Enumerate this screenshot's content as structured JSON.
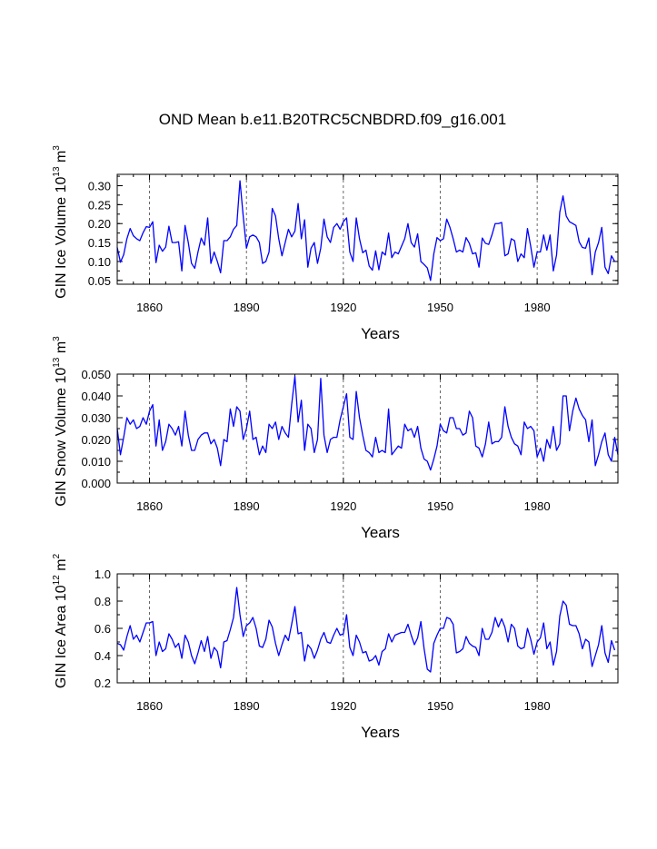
{
  "figure": {
    "title": "OND Mean b.e11.B20TRC5CNBDRD.f09_g16.001"
  },
  "chart_data": [
    {
      "type": "line",
      "title": "OND Mean b.e11.B20TRC5CNBDRD.f09_g16.001",
      "xlabel": "Years",
      "ylabel": {
        "base": "GIN Ice Volume 10",
        "exp1": "13",
        "mid": " m",
        "exp2": "3"
      },
      "xlim": [
        1850,
        2005
      ],
      "ylim": [
        0.04,
        0.33
      ],
      "xticks": [
        "1860",
        "1890",
        "1920",
        "1950",
        "1980"
      ],
      "xtick_values": [
        1860,
        1890,
        1920,
        1950,
        1980
      ],
      "yticks": [
        "0.05",
        "0.10",
        "0.15",
        "0.20",
        "0.25",
        "0.30"
      ],
      "ytick_values": [
        0.05,
        0.1,
        0.15,
        0.2,
        0.25,
        0.3
      ],
      "grid": "vertical dashed at labeled years",
      "color": "#0000ff",
      "series": [
        {
          "name": "GIN Ice Volume",
          "start_year": 1850,
          "values": [
            0.137,
            0.098,
            0.118,
            0.16,
            0.187,
            0.168,
            0.16,
            0.155,
            0.176,
            0.192,
            0.19,
            0.205,
            0.097,
            0.143,
            0.127,
            0.138,
            0.193,
            0.15,
            0.15,
            0.152,
            0.075,
            0.195,
            0.15,
            0.095,
            0.082,
            0.125,
            0.162,
            0.143,
            0.215,
            0.095,
            0.125,
            0.1,
            0.07,
            0.155,
            0.155,
            0.165,
            0.185,
            0.195,
            0.313,
            0.22,
            0.135,
            0.165,
            0.17,
            0.165,
            0.15,
            0.095,
            0.1,
            0.125,
            0.24,
            0.22,
            0.16,
            0.115,
            0.15,
            0.185,
            0.165,
            0.18,
            0.253,
            0.16,
            0.21,
            0.085,
            0.135,
            0.15,
            0.095,
            0.135,
            0.212,
            0.165,
            0.15,
            0.19,
            0.2,
            0.185,
            0.205,
            0.215,
            0.125,
            0.1,
            0.215,
            0.16,
            0.123,
            0.13,
            0.088,
            0.077,
            0.128,
            0.078,
            0.125,
            0.117,
            0.175,
            0.11,
            0.125,
            0.12,
            0.14,
            0.16,
            0.2,
            0.15,
            0.138,
            0.173,
            0.1,
            0.092,
            0.083,
            0.05,
            0.12,
            0.163,
            0.155,
            0.16,
            0.212,
            0.19,
            0.16,
            0.125,
            0.13,
            0.125,
            0.163,
            0.148,
            0.12,
            0.123,
            0.085,
            0.162,
            0.148,
            0.145,
            0.17,
            0.2,
            0.2,
            0.203,
            0.115,
            0.12,
            0.16,
            0.155,
            0.1,
            0.12,
            0.11,
            0.187,
            0.14,
            0.085,
            0.125,
            0.125,
            0.17,
            0.13,
            0.17,
            0.075,
            0.117,
            0.23,
            0.273,
            0.22,
            0.205,
            0.2,
            0.195,
            0.152,
            0.137,
            0.135,
            0.162,
            0.065,
            0.125,
            0.15,
            0.19,
            0.085,
            0.068,
            0.115,
            0.1
          ]
        }
      ]
    },
    {
      "type": "line",
      "xlabel": "Years",
      "ylabel": {
        "base": "GIN Snow Volume 10",
        "exp1": "13",
        "mid": " m",
        "exp2": "3"
      },
      "xlim": [
        1850,
        2005
      ],
      "ylim": [
        0.0,
        0.05
      ],
      "xticks": [
        "1860",
        "1890",
        "1920",
        "1950",
        "1980"
      ],
      "xtick_values": [
        1860,
        1890,
        1920,
        1950,
        1980
      ],
      "yticks": [
        "0.000",
        "0.010",
        "0.020",
        "0.030",
        "0.040",
        "0.050"
      ],
      "ytick_values": [
        0.0,
        0.01,
        0.02,
        0.03,
        0.04,
        0.05
      ],
      "grid": "vertical dashed at labeled years",
      "color": "#0000ff",
      "series": [
        {
          "name": "GIN Snow Volume",
          "start_year": 1850,
          "values": [
            0.025,
            0.013,
            0.021,
            0.03,
            0.027,
            0.029,
            0.025,
            0.026,
            0.03,
            0.027,
            0.033,
            0.036,
            0.017,
            0.029,
            0.015,
            0.019,
            0.027,
            0.025,
            0.022,
            0.026,
            0.017,
            0.033,
            0.022,
            0.015,
            0.015,
            0.02,
            0.022,
            0.023,
            0.023,
            0.018,
            0.02,
            0.016,
            0.008,
            0.02,
            0.019,
            0.034,
            0.026,
            0.035,
            0.033,
            0.02,
            0.025,
            0.033,
            0.02,
            0.021,
            0.013,
            0.017,
            0.014,
            0.027,
            0.025,
            0.028,
            0.02,
            0.026,
            0.023,
            0.021,
            0.036,
            0.049,
            0.028,
            0.038,
            0.015,
            0.027,
            0.025,
            0.014,
            0.02,
            0.048,
            0.022,
            0.014,
            0.02,
            0.021,
            0.021,
            0.029,
            0.035,
            0.041,
            0.021,
            0.02,
            0.042,
            0.03,
            0.022,
            0.015,
            0.014,
            0.012,
            0.021,
            0.014,
            0.015,
            0.014,
            0.034,
            0.013,
            0.015,
            0.017,
            0.016,
            0.027,
            0.024,
            0.025,
            0.021,
            0.026,
            0.016,
            0.011,
            0.01,
            0.006,
            0.011,
            0.017,
            0.027,
            0.024,
            0.023,
            0.03,
            0.03,
            0.025,
            0.025,
            0.022,
            0.023,
            0.033,
            0.03,
            0.017,
            0.016,
            0.012,
            0.018,
            0.028,
            0.018,
            0.019,
            0.019,
            0.021,
            0.035,
            0.026,
            0.021,
            0.018,
            0.017,
            0.013,
            0.028,
            0.025,
            0.026,
            0.024,
            0.012,
            0.016,
            0.01,
            0.02,
            0.016,
            0.026,
            0.015,
            0.018,
            0.04,
            0.04,
            0.024,
            0.033,
            0.039,
            0.034,
            0.031,
            0.029,
            0.019,
            0.029,
            0.008,
            0.013,
            0.019,
            0.023,
            0.013,
            0.01,
            0.021,
            0.013
          ]
        }
      ]
    },
    {
      "type": "line",
      "xlabel": "Years",
      "ylabel": {
        "base": "GIN Ice Area 10",
        "exp1": "12",
        "mid": " m",
        "exp2": "2"
      },
      "xlim": [
        1850,
        2005
      ],
      "ylim": [
        0.2,
        1.0
      ],
      "xticks": [
        "1860",
        "1890",
        "1920",
        "1950",
        "1980"
      ],
      "xtick_values": [
        1860,
        1890,
        1920,
        1950,
        1980
      ],
      "yticks": [
        "0.2",
        "0.4",
        "0.6",
        "0.8",
        "1.0"
      ],
      "ytick_values": [
        0.2,
        0.4,
        0.6,
        0.8,
        1.0
      ],
      "grid": "vertical dashed at labeled years",
      "color": "#0000ff",
      "series": [
        {
          "name": "GIN Ice Area",
          "start_year": 1850,
          "values": [
            0.49,
            0.48,
            0.44,
            0.54,
            0.62,
            0.52,
            0.55,
            0.5,
            0.57,
            0.64,
            0.64,
            0.65,
            0.4,
            0.5,
            0.43,
            0.45,
            0.56,
            0.52,
            0.46,
            0.49,
            0.38,
            0.55,
            0.5,
            0.4,
            0.34,
            0.42,
            0.51,
            0.43,
            0.54,
            0.38,
            0.46,
            0.43,
            0.31,
            0.5,
            0.51,
            0.59,
            0.68,
            0.9,
            0.7,
            0.54,
            0.62,
            0.64,
            0.68,
            0.6,
            0.47,
            0.46,
            0.52,
            0.66,
            0.61,
            0.49,
            0.4,
            0.48,
            0.55,
            0.51,
            0.63,
            0.76,
            0.56,
            0.57,
            0.36,
            0.48,
            0.45,
            0.38,
            0.44,
            0.52,
            0.57,
            0.5,
            0.49,
            0.55,
            0.6,
            0.55,
            0.56,
            0.7,
            0.46,
            0.4,
            0.55,
            0.5,
            0.42,
            0.43,
            0.36,
            0.37,
            0.4,
            0.33,
            0.43,
            0.45,
            0.56,
            0.5,
            0.55,
            0.56,
            0.57,
            0.57,
            0.63,
            0.55,
            0.48,
            0.53,
            0.65,
            0.45,
            0.3,
            0.28,
            0.49,
            0.55,
            0.6,
            0.6,
            0.68,
            0.67,
            0.63,
            0.42,
            0.43,
            0.45,
            0.54,
            0.49,
            0.47,
            0.46,
            0.4,
            0.6,
            0.52,
            0.52,
            0.57,
            0.68,
            0.61,
            0.67,
            0.61,
            0.5,
            0.63,
            0.6,
            0.47,
            0.45,
            0.46,
            0.6,
            0.52,
            0.41,
            0.5,
            0.53,
            0.64,
            0.45,
            0.5,
            0.33,
            0.43,
            0.69,
            0.8,
            0.77,
            0.63,
            0.62,
            0.62,
            0.56,
            0.45,
            0.52,
            0.5,
            0.32,
            0.4,
            0.48,
            0.62,
            0.42,
            0.35,
            0.51,
            0.44
          ]
        }
      ]
    }
  ]
}
